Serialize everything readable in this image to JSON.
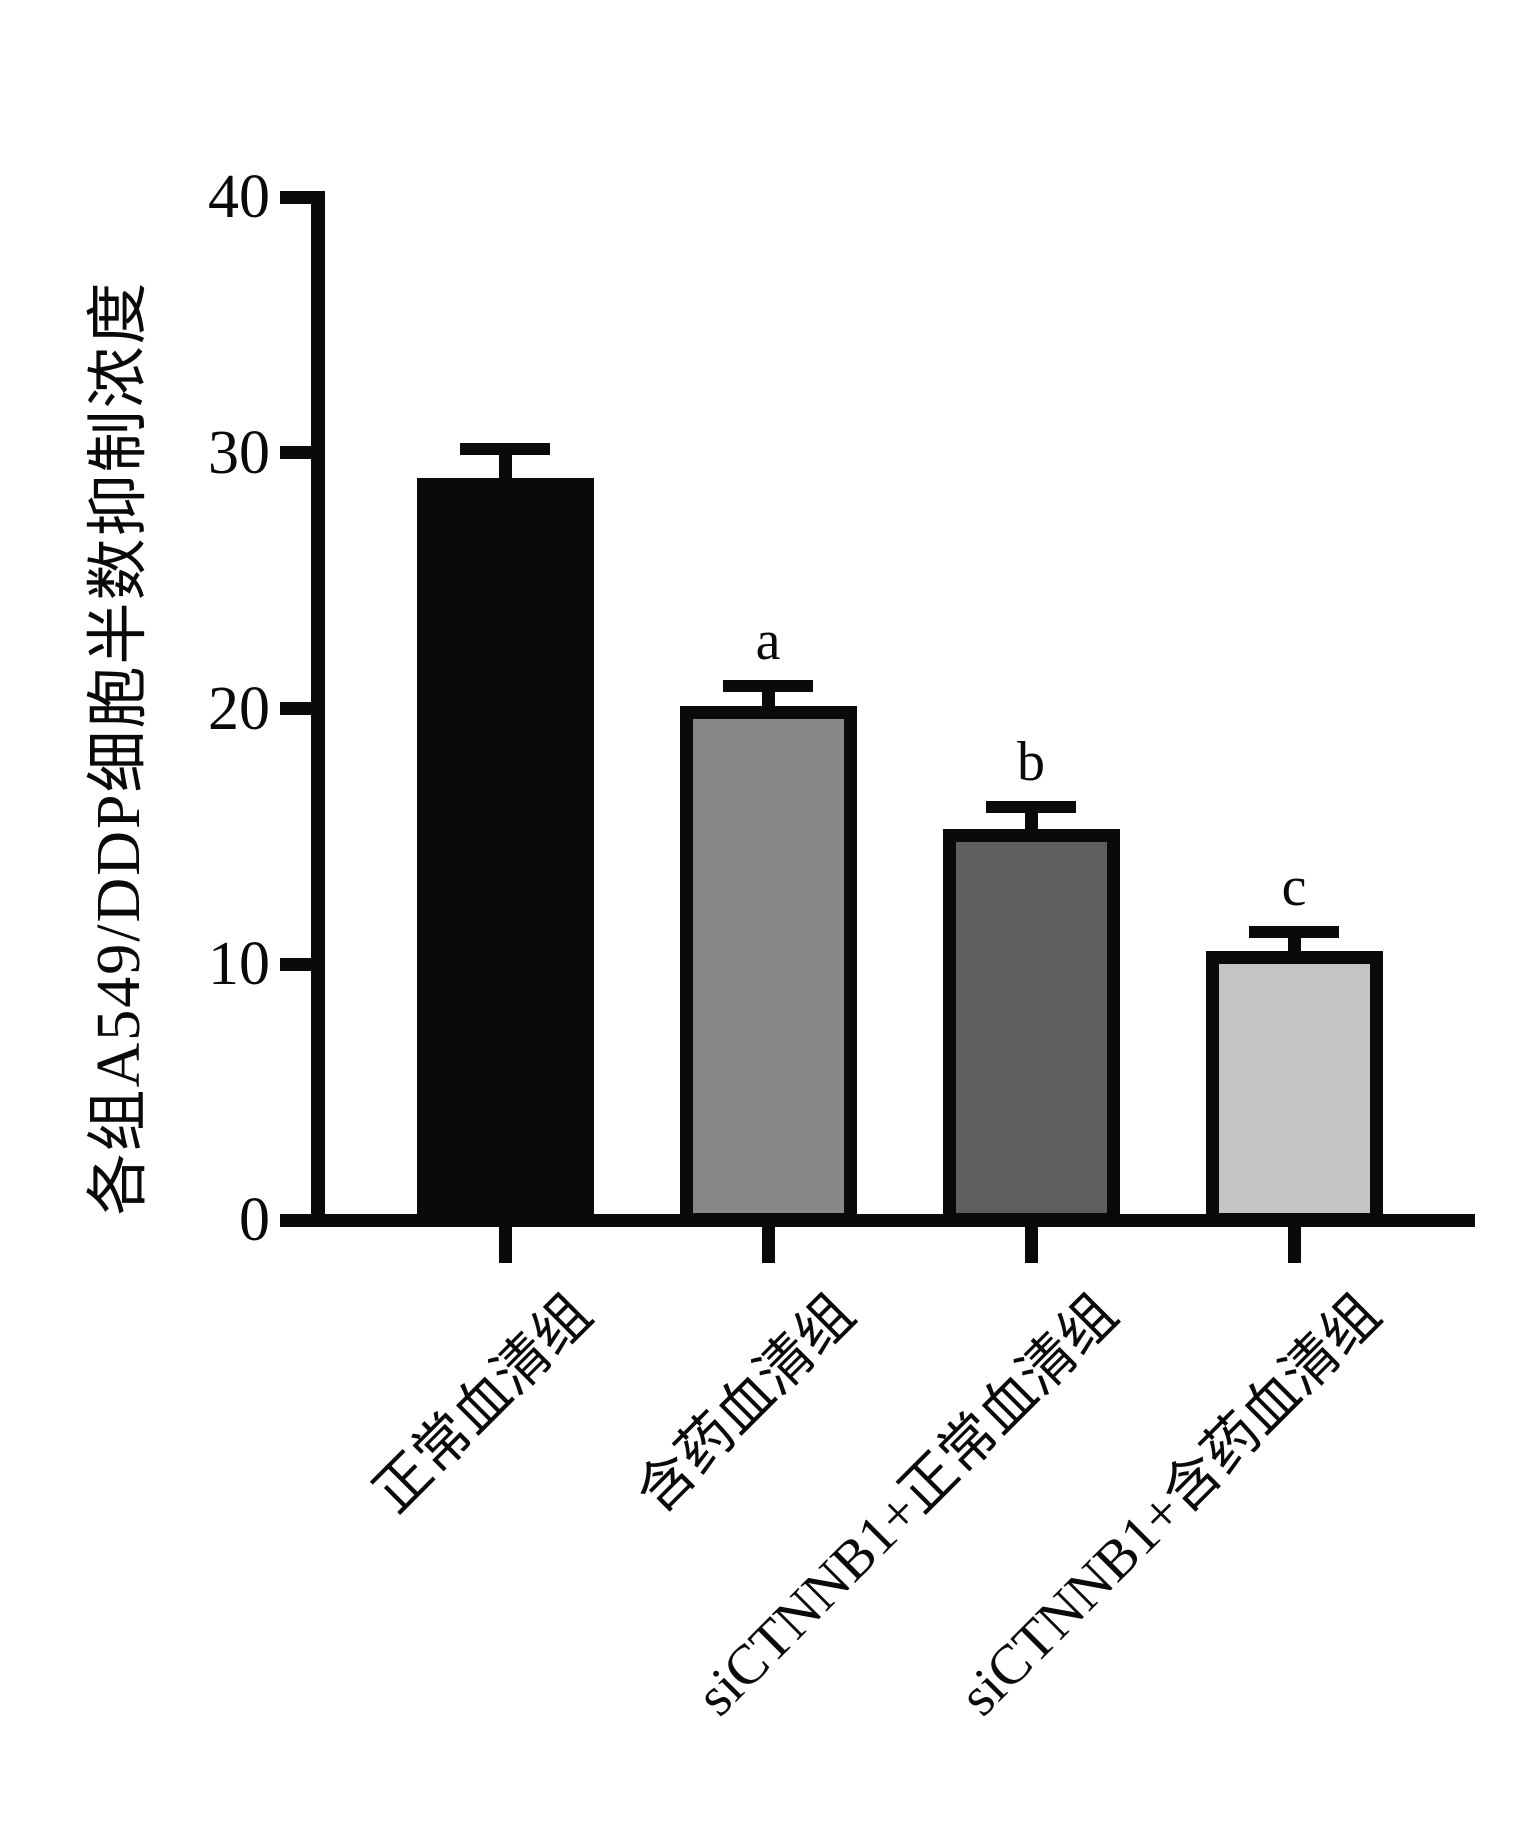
{
  "chart_data": {
    "type": "bar",
    "title": "",
    "xlabel": "",
    "ylabel": "各组A549/DDP细胞半数抑制浓度",
    "ylim": [
      0,
      40
    ],
    "yticks": [
      0,
      10,
      20,
      30,
      40
    ],
    "grid": false,
    "legend": null,
    "categories": [
      "正常血清组",
      "含药血清组",
      "siCTNNB1+正常血清组",
      "siCTNNB1+含药血清组"
    ],
    "values": [
      29.0,
      20.1,
      15.3,
      10.5
    ],
    "errors": [
      1.4,
      1.0,
      1.1,
      1.0
    ],
    "error_bar_style": "upper-cap",
    "annotations": [
      "",
      "a",
      "b",
      "c"
    ],
    "bar_colors": [
      "#0a0a0a",
      "#878787",
      "#5e5e5e",
      "#c4c4c4"
    ],
    "bar_border_color": "#0a0a0a",
    "axis_color": "#0a0a0a"
  }
}
